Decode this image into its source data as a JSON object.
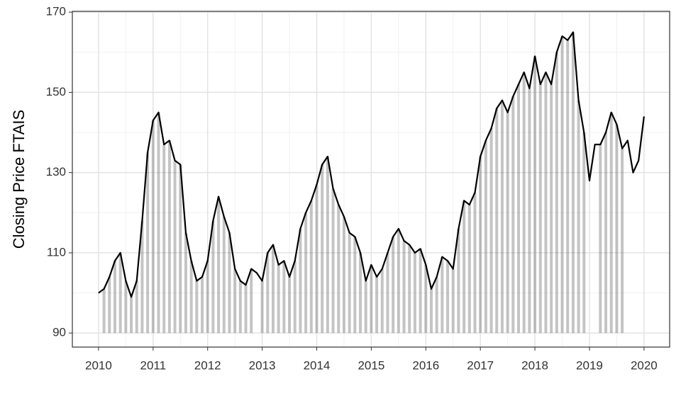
{
  "chart_data": {
    "type": "line",
    "y_label": "Closing Price FTAIS",
    "x": [
      2010,
      2010.1,
      2010.2,
      2010.3,
      2010.4,
      2010.5,
      2010.6,
      2010.7,
      2010.8,
      2010.9,
      2011,
      2011.1,
      2011.2,
      2011.3,
      2011.4,
      2011.5,
      2011.6,
      2011.7,
      2011.8,
      2011.9,
      2012,
      2012.1,
      2012.2,
      2012.3,
      2012.4,
      2012.5,
      2012.6,
      2012.7,
      2012.8,
      2012.9,
      2013,
      2013.1,
      2013.2,
      2013.3,
      2013.4,
      2013.5,
      2013.6,
      2013.7,
      2013.8,
      2013.9,
      2014,
      2014.1,
      2014.2,
      2014.3,
      2014.4,
      2014.5,
      2014.6,
      2014.7,
      2014.8,
      2014.9,
      2015,
      2015.1,
      2015.2,
      2015.3,
      2015.4,
      2015.5,
      2015.6,
      2015.7,
      2015.8,
      2015.9,
      2016,
      2016.1,
      2016.2,
      2016.3,
      2016.4,
      2016.5,
      2016.6,
      2016.7,
      2016.8,
      2016.9,
      2017,
      2017.1,
      2017.2,
      2017.3,
      2017.4,
      2017.5,
      2017.6,
      2017.7,
      2017.8,
      2017.9,
      2018,
      2018.1,
      2018.2,
      2018.3,
      2018.4,
      2018.5,
      2018.6,
      2018.7,
      2018.8,
      2018.9,
      2019,
      2019.1,
      2019.2,
      2019.3,
      2019.4,
      2019.5,
      2019.6,
      2019.7,
      2019.8,
      2019.9,
      2020
    ],
    "series": [
      {
        "kind": "line",
        "color": "#000000",
        "values": [
          100,
          101,
          104,
          108,
          110,
          103,
          99,
          103,
          118,
          135,
          143,
          145,
          137,
          138,
          133,
          132,
          115,
          108,
          103,
          104,
          108,
          118,
          124,
          119,
          115,
          106,
          103,
          102,
          106,
          105,
          103,
          110,
          112,
          107,
          108,
          104,
          108,
          116,
          120,
          123,
          127,
          132,
          134,
          126,
          122,
          119,
          115,
          114,
          110,
          103,
          107,
          104,
          106,
          110,
          114,
          116,
          113,
          112,
          110,
          111,
          107,
          101,
          104,
          109,
          108,
          106,
          116,
          123,
          122,
          125,
          134,
          138,
          141,
          146,
          148,
          145,
          149,
          152,
          155,
          151,
          159,
          152,
          155,
          152,
          160,
          164,
          163,
          165,
          148,
          140,
          128,
          137,
          137,
          140,
          145,
          142,
          136,
          138,
          130,
          133,
          144
        ]
      },
      {
        "kind": "segment",
        "color": "#555555",
        "values": [
          null,
          101,
          104,
          108,
          110,
          103,
          99,
          103,
          118,
          135,
          143,
          145,
          137,
          138,
          133,
          132,
          115,
          108,
          103,
          104,
          108,
          118,
          124,
          119,
          115,
          106,
          103,
          102,
          106,
          null,
          103,
          110,
          112,
          107,
          108,
          104,
          108,
          116,
          120,
          123,
          127,
          132,
          134,
          126,
          122,
          119,
          115,
          114,
          110,
          103,
          107,
          104,
          106,
          110,
          114,
          116,
          113,
          112,
          110,
          111,
          107,
          101,
          104,
          109,
          108,
          106,
          116,
          123,
          122,
          125,
          134,
          138,
          141,
          146,
          148,
          145,
          149,
          152,
          155,
          151,
          159,
          152,
          155,
          152,
          160,
          164,
          163,
          165,
          148,
          140,
          null,
          null,
          137,
          140,
          145,
          142,
          136,
          null,
          null,
          null,
          null
        ]
      }
    ],
    "xlim": [
      2009.52,
      2020.47
    ],
    "ylim": [
      86.5,
      170.2
    ],
    "xticks": [
      2010,
      2011,
      2012,
      2013,
      2014,
      2015,
      2016,
      2017,
      2018,
      2019,
      2020
    ],
    "yticks": [
      90,
      110,
      130,
      150,
      170
    ],
    "xminor": [
      2010.5,
      2011.5,
      2012.5,
      2013.5,
      2014.5,
      2015.5,
      2016.5,
      2017.5,
      2018.5,
      2019.5
    ],
    "yminor": [
      100,
      120,
      140,
      160
    ],
    "grid": true
  }
}
